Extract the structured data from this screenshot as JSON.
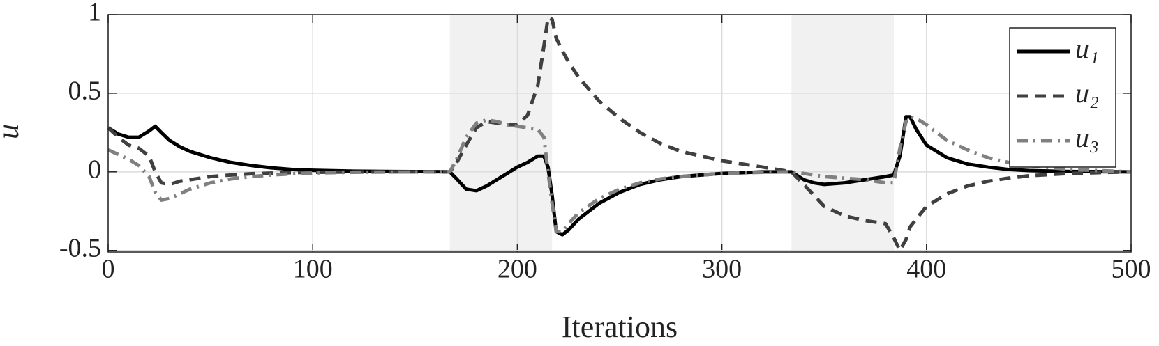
{
  "chart_data": {
    "type": "line",
    "x_label": "Iterations",
    "y_label": "u",
    "x": [
      0,
      5,
      10,
      15,
      20,
      23,
      26,
      30,
      35,
      40,
      50,
      60,
      70,
      80,
      90,
      100,
      120,
      140,
      160,
      167,
      170,
      175,
      180,
      185,
      190,
      195,
      200,
      205,
      210,
      213,
      215,
      217,
      219,
      222,
      225,
      230,
      240,
      250,
      260,
      270,
      280,
      300,
      320,
      334,
      340,
      345,
      350,
      360,
      370,
      380,
      384,
      387,
      390,
      392,
      395,
      400,
      410,
      420,
      430,
      440,
      450,
      470,
      500
    ],
    "series": [
      {
        "name": "u₁",
        "color": "#000000",
        "linestyle": "solid",
        "values": [
          0.28,
          0.24,
          0.22,
          0.22,
          0.26,
          0.29,
          0.25,
          0.2,
          0.16,
          0.13,
          0.09,
          0.06,
          0.04,
          0.025,
          0.015,
          0.01,
          0.004,
          0.002,
          0.001,
          0,
          -0.04,
          -0.11,
          -0.12,
          -0.09,
          -0.05,
          -0.01,
          0.03,
          0.06,
          0.1,
          0.1,
          0.03,
          -0.15,
          -0.38,
          -0.4,
          -0.37,
          -0.3,
          -0.2,
          -0.13,
          -0.08,
          -0.05,
          -0.03,
          -0.01,
          0,
          0,
          -0.05,
          -0.07,
          -0.08,
          -0.07,
          -0.05,
          -0.03,
          -0.02,
          0.1,
          0.35,
          0.35,
          0.27,
          0.17,
          0.09,
          0.05,
          0.03,
          0.015,
          0.008,
          0.002,
          0
        ]
      },
      {
        "name": "u₂",
        "color": "#404040",
        "linestyle": "dashed",
        "values": [
          0.28,
          0.22,
          0.17,
          0.15,
          0.1,
          0.0,
          -0.07,
          -0.08,
          -0.06,
          -0.05,
          -0.03,
          -0.02,
          -0.012,
          -0.008,
          -0.005,
          -0.003,
          -0.001,
          0,
          0,
          0,
          0.05,
          0.17,
          0.28,
          0.32,
          0.31,
          0.3,
          0.3,
          0.36,
          0.55,
          0.8,
          0.98,
          0.97,
          0.85,
          0.77,
          0.7,
          0.6,
          0.45,
          0.34,
          0.25,
          0.18,
          0.13,
          0.07,
          0.03,
          0,
          -0.08,
          -0.15,
          -0.22,
          -0.28,
          -0.31,
          -0.33,
          -0.42,
          -0.5,
          -0.43,
          -0.35,
          -0.3,
          -0.22,
          -0.14,
          -0.09,
          -0.06,
          -0.04,
          -0.025,
          -0.01,
          0
        ]
      },
      {
        "name": "u₃",
        "color": "#808080",
        "linestyle": "dashdot",
        "values": [
          0.14,
          0.11,
          0.08,
          0.04,
          -0.03,
          -0.13,
          -0.18,
          -0.17,
          -0.14,
          -0.11,
          -0.07,
          -0.045,
          -0.03,
          -0.02,
          -0.012,
          -0.007,
          -0.003,
          -0.001,
          0,
          0,
          0.07,
          0.22,
          0.31,
          0.33,
          0.32,
          0.3,
          0.29,
          0.28,
          0.27,
          0.22,
          0.0,
          -0.2,
          -0.38,
          -0.38,
          -0.33,
          -0.26,
          -0.17,
          -0.11,
          -0.07,
          -0.045,
          -0.03,
          -0.01,
          -0.003,
          0,
          -0.01,
          -0.02,
          -0.03,
          -0.04,
          -0.05,
          -0.07,
          -0.07,
          0.15,
          0.32,
          0.35,
          0.34,
          0.3,
          0.2,
          0.14,
          0.09,
          0.06,
          0.04,
          0.015,
          0
        ]
      }
    ],
    "shaded_regions": [
      [
        167,
        217
      ],
      [
        334,
        384
      ]
    ],
    "shade_color": "#f1f1f1",
    "xlim": [
      0,
      500
    ],
    "xticks": [
      0,
      100,
      200,
      300,
      400,
      500
    ],
    "ylim": [
      -0.51,
      1
    ],
    "yticks": [
      -0.5,
      0,
      0.5,
      1
    ],
    "grid": true,
    "legend": "upper right"
  }
}
